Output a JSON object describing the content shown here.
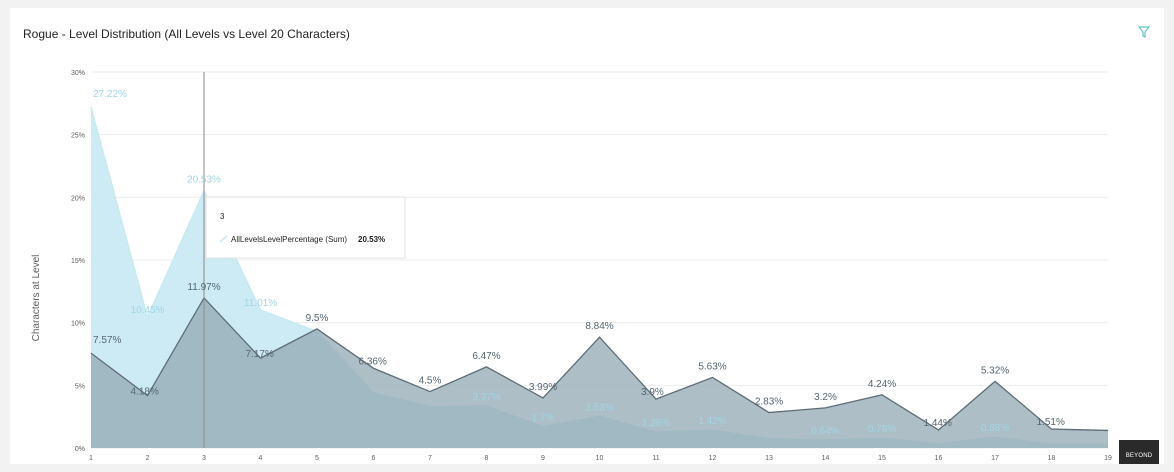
{
  "header": {
    "title": "Rogue - Level Distribution (All Levels vs Level 20 Characters)",
    "filter_icon": "filter-icon"
  },
  "chart_data": {
    "type": "area",
    "title": "Rogue - Level Distribution (All Levels vs Level 20 Characters)",
    "xlabel": "",
    "ylabel": "Characters at Level",
    "x": [
      1,
      2,
      3,
      4,
      5,
      6,
      7,
      8,
      9,
      10,
      11,
      12,
      13,
      14,
      15,
      16,
      17,
      18,
      19
    ],
    "ylim": [
      0,
      30
    ],
    "yticks": [
      "0%",
      "5%",
      "10%",
      "15%",
      "20%",
      "25%",
      "30%"
    ],
    "grid": true,
    "series": [
      {
        "name": "AllLevelsLevelPercentage",
        "color": "#c7e9f3",
        "values": [
          27.22,
          10.45,
          20.53,
          11.01,
          9.3,
          4.4,
          3.3,
          3.37,
          1.7,
          2.53,
          1.28,
          1.42,
          0.75,
          0.64,
          0.78,
          0.35,
          0.88,
          0.3,
          0.3
        ],
        "labels": [
          "27.22%",
          "10.45%",
          "20.53%",
          "11.01%",
          "",
          "",
          "",
          "3.37%",
          "1.7%",
          "2.53%",
          "1.28%",
          "1.42%",
          "",
          "0.64%",
          "0.78%",
          "",
          "0.88%",
          "",
          ""
        ]
      },
      {
        "name": "",
        "color": "#93a8b3",
        "values": [
          7.57,
          4.18,
          11.97,
          7.17,
          9.5,
          6.36,
          4.5,
          6.47,
          3.99,
          8.84,
          3.9,
          5.63,
          2.83,
          3.2,
          4.24,
          1.44,
          5.32,
          1.51,
          1.4
        ],
        "labels": [
          "7.57%",
          "4.18%",
          "11.97%",
          "7.17%",
          "9.5%",
          "6.36%",
          "4.5%",
          "6.47%",
          "3.99%",
          "8.84%",
          "3.9%",
          "5.63%",
          "2.83%",
          "3.2%",
          "4.24%",
          "1.44%",
          "5.32%",
          "1.51%",
          ""
        ]
      }
    ],
    "hover_x": 3
  },
  "tooltip": {
    "category": "3",
    "series_label": "AllLevelsLevelPercentage (Sum)",
    "value": "20.53%"
  },
  "logo": {
    "text": "BEYOND"
  }
}
